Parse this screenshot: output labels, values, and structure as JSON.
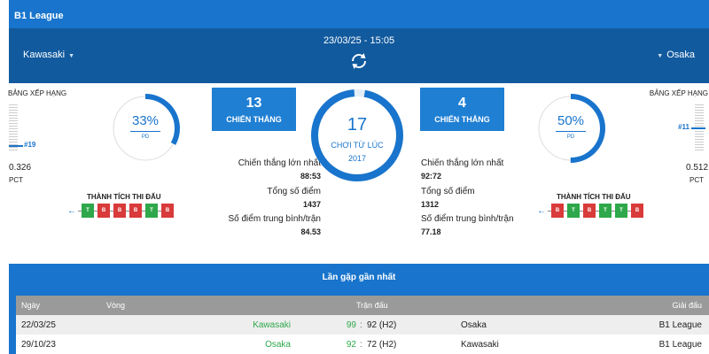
{
  "league": {
    "name": "B1 League"
  },
  "match": {
    "datetime": "23/03/25 - 15:05",
    "home_team": "Kawasaki",
    "away_team": "Osaka",
    "refresh_icon": "refresh-icon",
    "chevron_icon": "chevron-down-icon"
  },
  "home": {
    "ranking_label": "BẢNG XẾP HẠNG",
    "rank": "#19",
    "pct_value": "0.326",
    "pct_label": "PCT",
    "pd_percent": "33%",
    "pd_fraction": 0.33,
    "pd_label": "PD",
    "wins": "13",
    "wins_label": "CHIẾN THẮNG",
    "biggest_win_label": "Chiến thắng lớn nhất",
    "biggest_win_value": "88:53",
    "total_points_label": "Tổng số điểm",
    "total_points_value": "1437",
    "avg_points_label": "Số điểm trung bình/trận",
    "avg_points_value": "84.53",
    "form_label": "THÀNH TÍCH THI ĐẤU",
    "form": [
      "T",
      "B",
      "B",
      "B",
      "T",
      "B"
    ]
  },
  "away": {
    "ranking_label": "BẢNG XẾP HẠNG",
    "rank": "#11",
    "pct_value": "0.512",
    "pct_label": "PCT",
    "pd_percent": "50%",
    "pd_fraction": 0.5,
    "pd_label": "PD",
    "wins": "4",
    "wins_label": "CHIẾN THẮNG",
    "biggest_win_label": "Chiến thắng lớn nhất",
    "biggest_win_value": "92:72",
    "total_points_label": "Tổng số điểm",
    "total_points_value": "1312",
    "avg_points_label": "Số điểm trung bình/trận",
    "avg_points_value": "77.18",
    "form_label": "THÀNH TÍCH THI ĐẤU",
    "form": [
      "B",
      "T",
      "B",
      "T",
      "T",
      "B"
    ]
  },
  "center": {
    "games_played": "17",
    "since_label": "CHƠI TỪ LÚC",
    "since_year": "2017",
    "fraction": 0.96
  },
  "recent": {
    "title": "Lần gặp gần nhất",
    "columns": {
      "date": "Ngày",
      "round": "Vòng",
      "match": "Trận đấu",
      "league": "Giải đấu"
    },
    "rows": [
      {
        "date": "22/03/25",
        "home": "Kawasaki",
        "home_score": "99",
        "sep": ":",
        "away_score": "92 (H2)",
        "away": "Osaka",
        "league": "B1 League"
      },
      {
        "date": "29/10/23",
        "home": "Osaka",
        "home_score": "92",
        "sep": ":",
        "away_score": "72 (H2)",
        "away": "Kawasaki",
        "league": "B1 League"
      }
    ]
  },
  "colors": {
    "primary": "#1874cc",
    "header_dark": "#125a9e",
    "win": "#2ea84a",
    "loss": "#d93a3a",
    "table_header": "#9a9a9a"
  }
}
